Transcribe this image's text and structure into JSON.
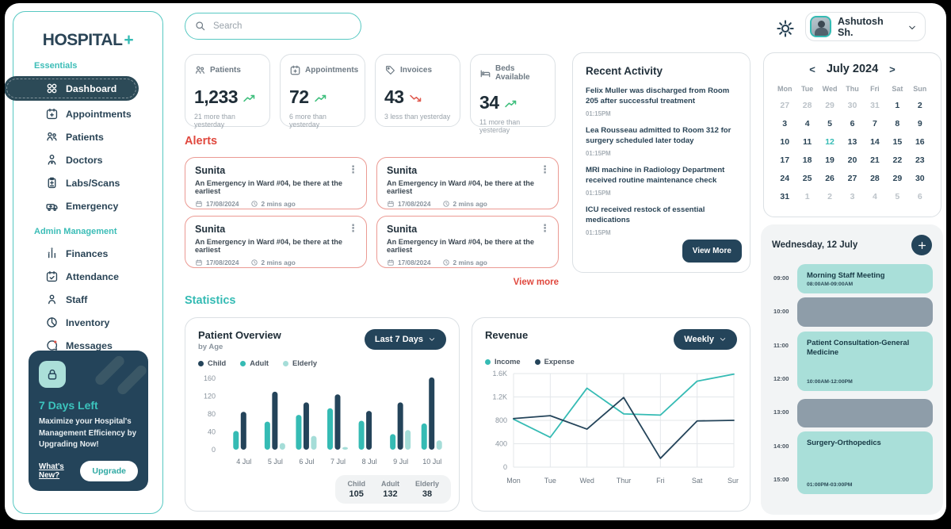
{
  "colors": {
    "accent_teal": "#35BBB4",
    "dark_navy": "#24445A",
    "alert_red": "#E0483E",
    "light_teal": "#A9DFD9",
    "trend_green": "#3FBF7D",
    "trend_red": "#E05B50"
  },
  "sidebar": {
    "logo": {
      "text": "HOSPITAL",
      "plus": "+"
    },
    "sections": [
      {
        "label": "Essentials",
        "items": [
          {
            "label": "Dashboard",
            "icon": "dashboard-icon",
            "active": true
          },
          {
            "label": "Appointments",
            "icon": "appointments-icon",
            "active": false
          },
          {
            "label": "Patients",
            "icon": "patients-icon",
            "active": false
          },
          {
            "label": "Doctors",
            "icon": "doctor-icon",
            "active": false
          },
          {
            "label": "Labs/Scans",
            "icon": "labs-icon",
            "active": false
          },
          {
            "label": "Emergency",
            "icon": "ambulance-icon",
            "active": false
          }
        ]
      },
      {
        "label": "Admin Management",
        "items": [
          {
            "label": "Finances",
            "icon": "finances-icon",
            "active": false
          },
          {
            "label": "Attendance",
            "icon": "attendance-icon",
            "active": false
          },
          {
            "label": "Staff",
            "icon": "staff-icon",
            "active": false
          },
          {
            "label": "Inventory",
            "icon": "inventory-icon",
            "active": false
          },
          {
            "label": "Messages",
            "icon": "messages-icon",
            "active": false
          }
        ]
      }
    ],
    "promo": {
      "heading": "7 Days Left",
      "text": "Maximize your Hospital's Management Efficiency by Upgrading Now!",
      "link": "What's New?",
      "button": "Upgrade"
    }
  },
  "topbar": {
    "search_placeholder": "Search",
    "user": {
      "name": "Ashutosh Sh."
    }
  },
  "stats": [
    {
      "icon": "patients-icon",
      "label": "Patients",
      "value": "1,233",
      "trend": "up",
      "delta": "21 more than yesterday"
    },
    {
      "icon": "appointments-icon",
      "label": "Appointments",
      "value": "72",
      "trend": "up",
      "delta": "6 more than yesterday"
    },
    {
      "icon": "invoices-icon",
      "label": "Invoices",
      "value": "43",
      "trend": "down",
      "delta": "3 less than yesterday"
    },
    {
      "icon": "beds-icon",
      "label": "Beds Available",
      "value": "34",
      "trend": "up",
      "delta": "11 more than yesterday"
    }
  ],
  "alerts": {
    "title": "Alerts",
    "view_more": "View more",
    "cards": [
      {
        "name": "Sunita",
        "message": "An Emergency in Ward #04, be there at the earliest",
        "date": "17/08/2024",
        "time": "2 mins ago"
      },
      {
        "name": "Sunita",
        "message": "An Emergency in Ward #04, be there at the earliest",
        "date": "17/08/2024",
        "time": "2 mins ago"
      },
      {
        "name": "Sunita",
        "message": "An Emergency in Ward #04, be there at the earliest",
        "date": "17/08/2024",
        "time": "2 mins ago"
      },
      {
        "name": "Sunita",
        "message": "An Emergency in Ward #04, be there at the earliest",
        "date": "17/08/2024",
        "time": "2 mins ago"
      }
    ]
  },
  "recent_activity": {
    "title": "Recent Activity",
    "button": "View More",
    "items": [
      {
        "text": "Felix Muller was discharged from Room 205 after successful treatment",
        "time": "01:15PM"
      },
      {
        "text": "Lea Rousseau admitted to Room 312 for surgery scheduled later today",
        "time": "01:15PM"
      },
      {
        "text": "MRI machine in Radiology Department received routine maintenance check",
        "time": "01:15PM"
      },
      {
        "text": "ICU received restock of essential medications",
        "time": "01:15PM"
      }
    ]
  },
  "calendar": {
    "title": "July 2024",
    "prev": "<",
    "next": ">",
    "weekdays": [
      "Mon",
      "Tue",
      "Wed",
      "Thu",
      "Fri",
      "Sat",
      "Sun"
    ],
    "days": [
      [
        {
          "t": "27",
          "s": "muted"
        },
        {
          "t": "28",
          "s": "muted"
        },
        {
          "t": "29",
          "s": "muted"
        },
        {
          "t": "30",
          "s": "muted"
        },
        {
          "t": "31",
          "s": "muted"
        },
        {
          "t": "1",
          "s": ""
        },
        {
          "t": "2",
          "s": ""
        }
      ],
      [
        {
          "t": "3",
          "s": ""
        },
        {
          "t": "4",
          "s": ""
        },
        {
          "t": "5",
          "s": ""
        },
        {
          "t": "6",
          "s": ""
        },
        {
          "t": "7",
          "s": ""
        },
        {
          "t": "8",
          "s": ""
        },
        {
          "t": "9",
          "s": ""
        }
      ],
      [
        {
          "t": "10",
          "s": ""
        },
        {
          "t": "11",
          "s": ""
        },
        {
          "t": "12",
          "s": "active"
        },
        {
          "t": "13",
          "s": ""
        },
        {
          "t": "14",
          "s": ""
        },
        {
          "t": "15",
          "s": ""
        },
        {
          "t": "16",
          "s": ""
        }
      ],
      [
        {
          "t": "17",
          "s": ""
        },
        {
          "t": "18",
          "s": ""
        },
        {
          "t": "19",
          "s": ""
        },
        {
          "t": "20",
          "s": ""
        },
        {
          "t": "21",
          "s": ""
        },
        {
          "t": "22",
          "s": ""
        },
        {
          "t": "23",
          "s": ""
        }
      ],
      [
        {
          "t": "24",
          "s": ""
        },
        {
          "t": "25",
          "s": ""
        },
        {
          "t": "26",
          "s": ""
        },
        {
          "t": "27",
          "s": ""
        },
        {
          "t": "28",
          "s": ""
        },
        {
          "t": "29",
          "s": ""
        },
        {
          "t": "30",
          "s": ""
        }
      ],
      [
        {
          "t": "31",
          "s": ""
        },
        {
          "t": "1",
          "s": "muted"
        },
        {
          "t": "2",
          "s": "muted"
        },
        {
          "t": "3",
          "s": "muted"
        },
        {
          "t": "4",
          "s": "muted"
        },
        {
          "t": "5",
          "s": "muted"
        },
        {
          "t": "6",
          "s": "muted"
        }
      ]
    ]
  },
  "schedule": {
    "title": "Wednesday, 12 July",
    "times": [
      "09:00",
      "10:00",
      "11:00",
      "12:00",
      "13:00",
      "14:00",
      "15:00"
    ],
    "events": [
      {
        "title": "Morning Staff Meeting",
        "time": "08:00AM-09:00AM",
        "type": "teal"
      },
      {
        "title": "",
        "time": "",
        "type": "gray"
      },
      {
        "title": "Patient Consultation-General Medicine",
        "time": "10:00AM-12:00PM",
        "type": "teal"
      },
      {
        "title": "",
        "time": "",
        "type": "gray"
      },
      {
        "title": "Surgery-Orthopedics",
        "time": "01:00PM-03:00PM",
        "type": "teal"
      }
    ]
  },
  "statistics_title": "Statistics",
  "chart_data": [
    {
      "type": "bar",
      "title": "Patient Overview",
      "subtitle": "by Age",
      "filter_label": "Last 7 Days",
      "categories": [
        "4 Jul",
        "5 Jul",
        "6 Jul",
        "7 Jul",
        "8 Jul",
        "9 Jul",
        "10 Jul"
      ],
      "series": [
        {
          "name": "Child",
          "color": "#24445A",
          "values": [
            85,
            130,
            106,
            124,
            87,
            106,
            162
          ]
        },
        {
          "name": "Adult",
          "color": "#35BBB4",
          "values": [
            42,
            63,
            78,
            93,
            65,
            35,
            59
          ]
        },
        {
          "name": "Elderly",
          "color": "#A5DDD8",
          "values": [
            0,
            15,
            31,
            6,
            0,
            44,
            21
          ]
        }
      ],
      "bar_order": [
        "Adult",
        "Child",
        "Elderly"
      ],
      "ylim": [
        0,
        160
      ],
      "yticks": [
        0,
        40,
        80,
        120,
        160
      ],
      "grid": false,
      "legend_position": "top",
      "summary": [
        {
          "label": "Child",
          "value": "105"
        },
        {
          "label": "Adult",
          "value": "132"
        },
        {
          "label": "Elderly",
          "value": "38"
        }
      ]
    },
    {
      "type": "line",
      "title": "Revenue",
      "filter_label": "Weekly",
      "x": [
        "Mon",
        "Tue",
        "Wed",
        "Thur",
        "Fri",
        "Sat",
        "Sun"
      ],
      "series": [
        {
          "name": "Income",
          "color": "#35BBB4",
          "values": [
            820,
            510,
            1350,
            910,
            890,
            1470,
            1590
          ]
        },
        {
          "name": "Expense",
          "color": "#24445A",
          "values": [
            830,
            880,
            650,
            1190,
            150,
            790,
            800
          ]
        }
      ],
      "ylim": [
        0,
        1600
      ],
      "yticks": [
        0,
        400,
        800,
        1200,
        1600
      ],
      "ytick_labels": [
        "0",
        "400",
        "800",
        "1.2K",
        "1.6K"
      ],
      "grid": true,
      "legend_position": "top"
    }
  ]
}
